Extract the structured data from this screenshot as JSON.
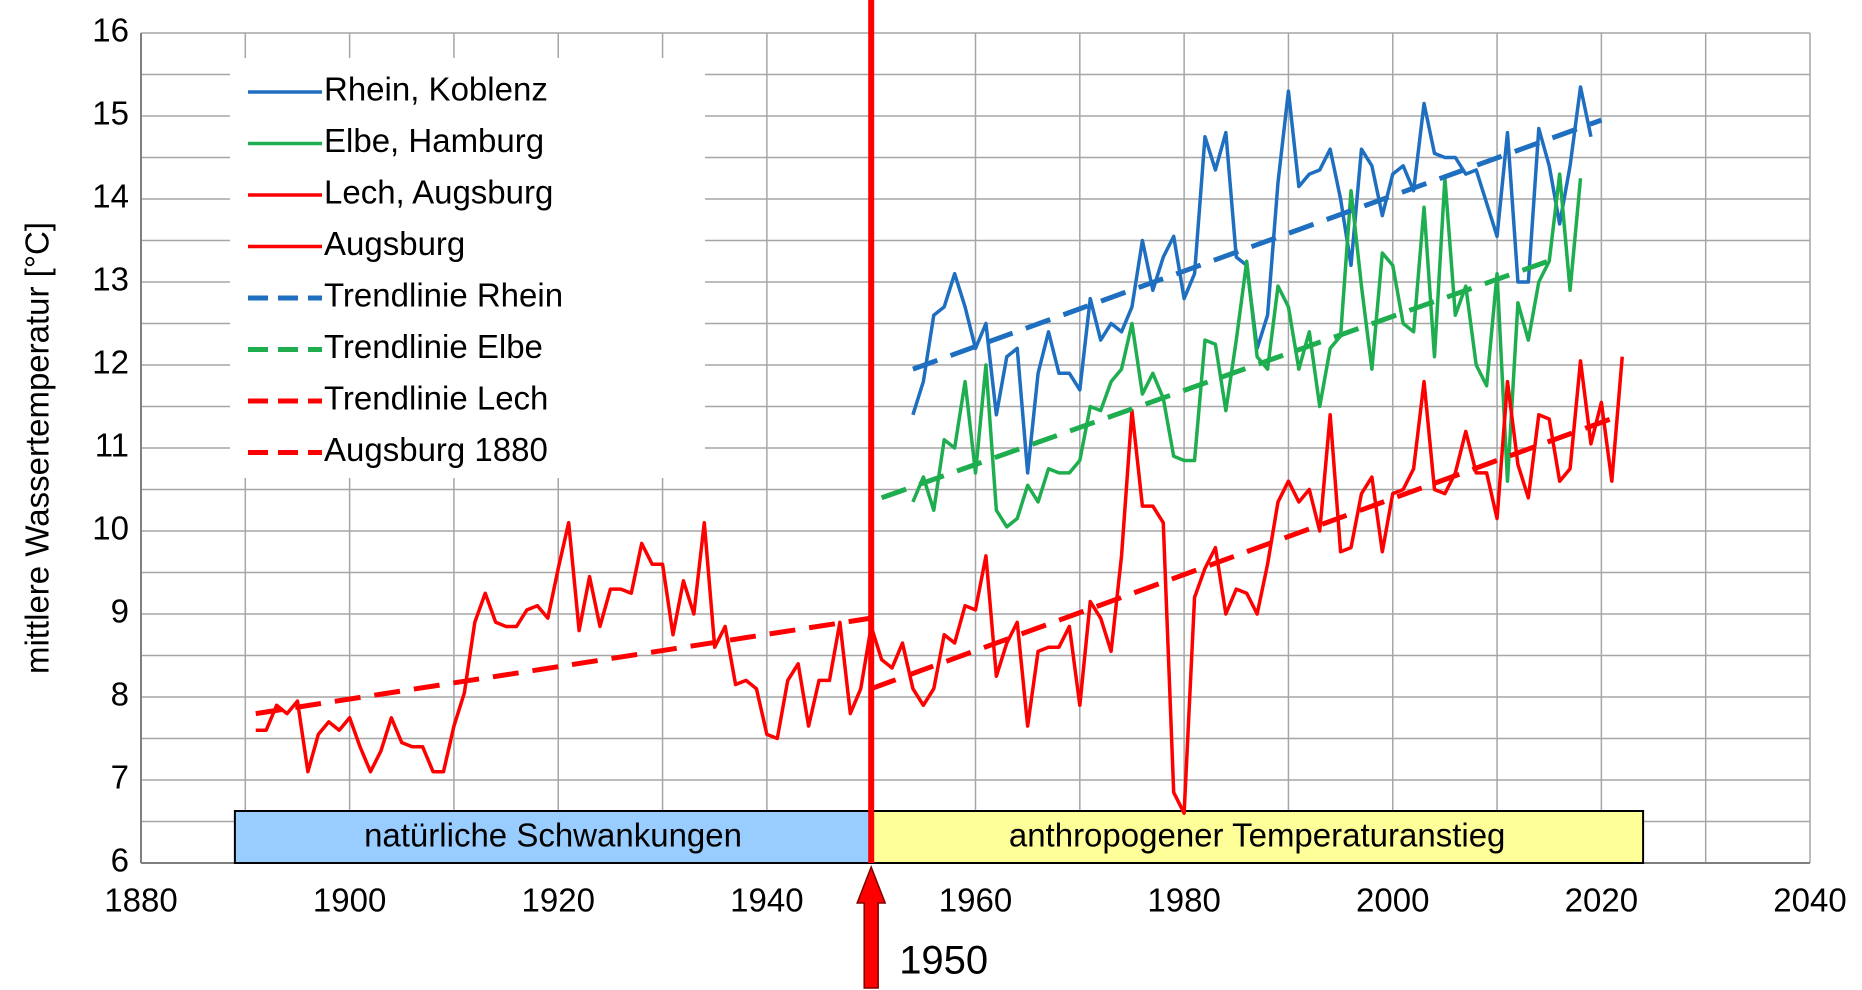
{
  "chart_data": {
    "type": "line",
    "y_label": "mittlere Wassertemperatur [°C]",
    "xlim": [
      1880,
      2040
    ],
    "xticks": [
      1880,
      1900,
      1920,
      1940,
      1960,
      1980,
      2000,
      2020,
      2040
    ],
    "xminorticks": [
      1890,
      1910,
      1930,
      1950,
      1970,
      1990,
      2010,
      2030
    ],
    "ylim": [
      6,
      16
    ],
    "yticks": [
      6,
      7,
      8,
      9,
      10,
      11,
      12,
      13,
      14,
      15,
      16
    ],
    "yminorticks": [
      6.5,
      7.5,
      8.5,
      9.5,
      10.5,
      11.5,
      12.5,
      13.5,
      14.5,
      15.5
    ],
    "grid": true,
    "legend": "upper left",
    "series": [
      {
        "name": "Rhein, Koblenz",
        "color": "#1f6fc0",
        "dashed": false,
        "x": [
          1954,
          1955,
          1956,
          1957,
          1958,
          1959,
          1960,
          1961,
          1962,
          1963,
          1964,
          1965,
          1966,
          1967,
          1968,
          1969,
          1970,
          1971,
          1972,
          1973,
          1974,
          1975,
          1976,
          1977,
          1978,
          1979,
          1980,
          1981,
          1982,
          1983,
          1984,
          1985,
          1986,
          1987,
          1988,
          1989,
          1990,
          1991,
          1992,
          1993,
          1994,
          1995,
          1996,
          1997,
          1998,
          1999,
          2000,
          2001,
          2002,
          2003,
          2004,
          2005,
          2006,
          2007,
          2008,
          2009,
          2010,
          2011,
          2012,
          2013,
          2014,
          2015,
          2016,
          2017,
          2018,
          2019
        ],
        "values": [
          11.4,
          11.8,
          12.6,
          12.7,
          13.1,
          12.7,
          12.2,
          12.5,
          11.4,
          12.1,
          12.2,
          10.7,
          11.9,
          12.4,
          11.9,
          11.9,
          11.7,
          12.8,
          12.3,
          12.5,
          12.4,
          12.7,
          13.5,
          12.9,
          13.3,
          13.55,
          12.8,
          13.1,
          14.75,
          14.35,
          14.8,
          13.3,
          13.2,
          12.2,
          12.6,
          14.2,
          15.3,
          14.15,
          14.3,
          14.35,
          14.6,
          14.0,
          13.2,
          14.6,
          14.4,
          13.8,
          14.3,
          14.4,
          14.1,
          15.15,
          14.55,
          14.5,
          14.5,
          14.3,
          14.35,
          13.95,
          13.55,
          14.8,
          13.0,
          13.0,
          14.85,
          14.4,
          13.7,
          14.4,
          15.35,
          14.75
        ]
      },
      {
        "name": "Elbe, Hamburg",
        "color": "#1fae4f",
        "dashed": false,
        "x": [
          1954,
          1955,
          1956,
          1957,
          1958,
          1959,
          1960,
          1961,
          1962,
          1963,
          1964,
          1965,
          1966,
          1967,
          1968,
          1969,
          1970,
          1971,
          1972,
          1973,
          1974,
          1975,
          1976,
          1977,
          1978,
          1979,
          1980,
          1981,
          1982,
          1983,
          1984,
          1985,
          1986,
          1987,
          1988,
          1989,
          1990,
          1991,
          1992,
          1993,
          1994,
          1995,
          1996,
          1997,
          1998,
          1999,
          2000,
          2001,
          2002,
          2003,
          2004,
          2005,
          2006,
          2007,
          2008,
          2009,
          2010,
          2011,
          2012,
          2013,
          2014,
          2015,
          2016,
          2017,
          2018
        ],
        "values": [
          10.35,
          10.65,
          10.25,
          11.1,
          11.0,
          11.8,
          10.7,
          12.0,
          10.25,
          10.05,
          10.15,
          10.55,
          10.35,
          10.75,
          10.7,
          10.7,
          10.85,
          11.5,
          11.45,
          11.8,
          11.95,
          12.5,
          11.65,
          11.9,
          11.6,
          10.9,
          10.85,
          10.85,
          12.3,
          12.25,
          11.45,
          12.3,
          13.25,
          12.1,
          11.95,
          12.95,
          12.7,
          11.95,
          12.4,
          11.5,
          12.2,
          12.35,
          14.1,
          12.95,
          11.95,
          13.35,
          13.2,
          12.5,
          12.4,
          13.9,
          12.1,
          14.25,
          12.6,
          12.95,
          12.0,
          11.75,
          13.1,
          10.6,
          12.75,
          12.3,
          13.0,
          13.25,
          14.3,
          12.9,
          14.25
        ]
      },
      {
        "name": "Lech, Augsburg",
        "color": "#ff0000",
        "dashed": false,
        "x": [
          1950,
          1951,
          1952,
          1953,
          1954,
          1955,
          1956,
          1957,
          1958,
          1959,
          1960,
          1961,
          1962,
          1963,
          1964,
          1965,
          1966,
          1967,
          1968,
          1969,
          1970,
          1971,
          1972,
          1973,
          1974,
          1975,
          1976,
          1977,
          1978,
          1979,
          1980,
          1981,
          1982,
          1983,
          1984,
          1985,
          1986,
          1987,
          1988,
          1989,
          1990,
          1991,
          1992,
          1993,
          1994,
          1995,
          1996,
          1997,
          1998,
          1999,
          2000,
          2001,
          2002,
          2003,
          2004,
          2005,
          2006,
          2007,
          2008,
          2009,
          2010,
          2011,
          2012,
          2013,
          2014,
          2015,
          2016,
          2017,
          2018,
          2019,
          2020,
          2021,
          2022
        ],
        "values": [
          8.85,
          8.45,
          8.35,
          8.65,
          8.1,
          7.9,
          8.1,
          8.75,
          8.65,
          9.1,
          9.05,
          9.7,
          8.25,
          8.65,
          8.9,
          7.65,
          8.55,
          8.6,
          8.6,
          8.85,
          7.9,
          9.15,
          8.95,
          8.55,
          9.7,
          11.45,
          10.3,
          10.3,
          10.1,
          6.85,
          6.6,
          9.2,
          9.55,
          9.8,
          9.0,
          9.3,
          9.25,
          9.0,
          9.6,
          10.35,
          10.6,
          10.35,
          10.5,
          10.0,
          11.4,
          9.75,
          9.8,
          10.45,
          10.65,
          9.75,
          10.45,
          10.5,
          10.75,
          11.8,
          10.5,
          10.45,
          10.7,
          11.2,
          10.7,
          10.7,
          10.15,
          11.8,
          10.8,
          10.4,
          11.4,
          11.35,
          10.6,
          10.75,
          12.05,
          11.05,
          11.55,
          10.6,
          12.1
        ]
      },
      {
        "name": "Augsburg",
        "color": "#ff0000",
        "dashed": false,
        "x": [
          1891,
          1892,
          1893,
          1894,
          1895,
          1896,
          1897,
          1898,
          1899,
          1900,
          1901,
          1902,
          1903,
          1904,
          1905,
          1906,
          1907,
          1908,
          1909,
          1910,
          1911,
          1912,
          1913,
          1914,
          1915,
          1916,
          1917,
          1918,
          1919,
          1920,
          1921,
          1922,
          1923,
          1924,
          1925,
          1926,
          1927,
          1928,
          1929,
          1930,
          1931,
          1932,
          1933,
          1934,
          1935,
          1936,
          1937,
          1938,
          1939,
          1940,
          1941,
          1942,
          1943,
          1944,
          1945,
          1946,
          1947,
          1948,
          1949,
          1950
        ],
        "values": [
          7.6,
          7.6,
          7.9,
          7.8,
          7.95,
          7.1,
          7.55,
          7.7,
          7.6,
          7.75,
          7.4,
          7.1,
          7.35,
          7.75,
          7.45,
          7.4,
          7.4,
          7.1,
          7.1,
          7.65,
          8.05,
          8.9,
          9.25,
          8.9,
          8.85,
          8.85,
          9.05,
          9.1,
          8.95,
          9.55,
          10.1,
          8.8,
          9.45,
          8.85,
          9.3,
          9.3,
          9.25,
          9.85,
          9.6,
          9.6,
          8.75,
          9.4,
          9.0,
          10.1,
          8.6,
          8.85,
          8.15,
          8.2,
          8.1,
          7.55,
          7.5,
          8.2,
          8.4,
          7.65,
          8.2,
          8.2,
          8.9,
          7.8,
          8.1,
          8.85
        ]
      },
      {
        "name": "Trendlinie Rhein",
        "color": "#1f6fc0",
        "dashed": true,
        "x": [
          1954,
          2020
        ],
        "values": [
          11.95,
          14.95
        ]
      },
      {
        "name": "Trendlinie Elbe",
        "color": "#1fae4f",
        "dashed": true,
        "x": [
          1951,
          2016
        ],
        "values": [
          10.4,
          13.3
        ]
      },
      {
        "name": "Trendlinie Lech",
        "color": "#ff0000",
        "dashed": true,
        "x": [
          1950,
          2022
        ],
        "values": [
          8.1,
          11.4
        ]
      },
      {
        "name": "Augsburg 1880",
        "color": "#ff0000",
        "dashed": true,
        "x": [
          1891,
          1950
        ],
        "values": [
          7.8,
          8.95
        ]
      }
    ],
    "regions": [
      {
        "label": "natürliche Schwankungen",
        "from": 1889,
        "to": 1950,
        "color": "#99ccff"
      },
      {
        "label": "anthropogener Temperaturanstieg",
        "from": 1950,
        "to": 2024,
        "color": "#ffff99"
      }
    ],
    "marker": {
      "x": 1950,
      "color": "#ff0000"
    }
  }
}
